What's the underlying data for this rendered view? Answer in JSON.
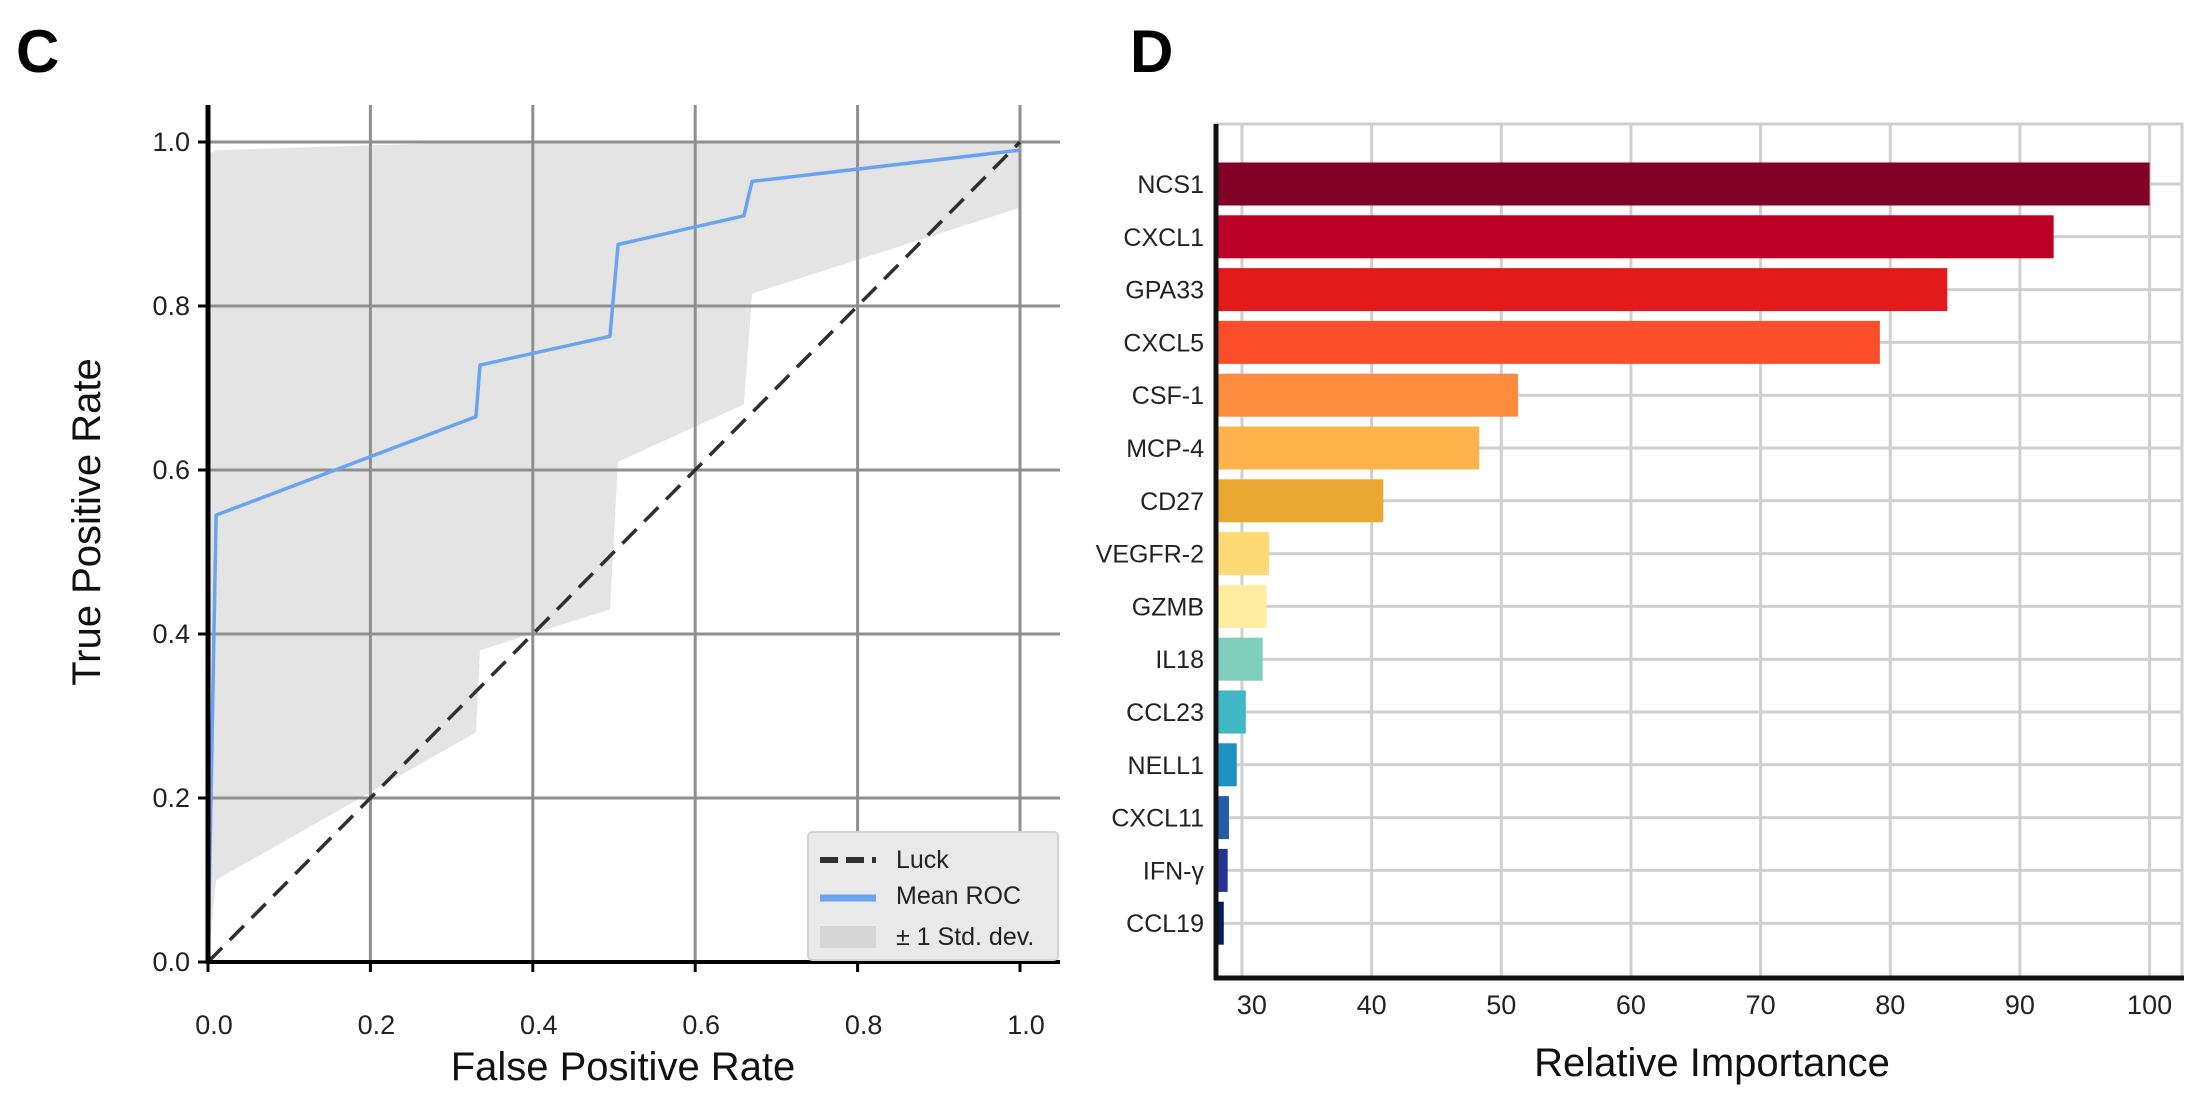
{
  "chart_data": [
    {
      "panel": "C",
      "type": "line",
      "title": "",
      "xlabel": "False Positive Rate",
      "ylabel": "True Positive Rate",
      "xlim": [
        0.0,
        1.0
      ],
      "ylim": [
        0.0,
        1.0
      ],
      "xticks": [
        "0.0",
        "0.2",
        "0.4",
        "0.6",
        "0.8",
        "1.0"
      ],
      "yticks": [
        "0.0",
        "0.2",
        "0.4",
        "0.6",
        "0.8",
        "1.0"
      ],
      "grid": true,
      "legend_position": "bottom-right",
      "series": [
        {
          "name": "Luck",
          "style": "dashed",
          "color": "#2f2f2f",
          "x": [
            0.0,
            1.0
          ],
          "y": [
            0.0,
            1.0
          ]
        },
        {
          "name": "Mean ROC",
          "style": "solid",
          "color": "#6aa4f0",
          "x": [
            0.0,
            0.01,
            0.33,
            0.335,
            0.495,
            0.505,
            0.66,
            0.67,
            1.0
          ],
          "y": [
            0.0,
            0.545,
            0.665,
            0.728,
            0.763,
            0.875,
            0.91,
            0.952,
            0.99
          ]
        }
      ],
      "band": {
        "name": "± 1 Std. dev.",
        "color": "#e4e4e4",
        "x": [
          0.0,
          0.01,
          0.33,
          0.335,
          0.495,
          0.505,
          0.66,
          0.67,
          1.0
        ],
        "upper": [
          0.985,
          0.99,
          1.0,
          1.0,
          1.0,
          1.0,
          1.0,
          1.0,
          1.0
        ],
        "lower": [
          0.0,
          0.1,
          0.28,
          0.38,
          0.43,
          0.61,
          0.68,
          0.815,
          0.92
        ]
      }
    },
    {
      "panel": "D",
      "type": "bar",
      "orientation": "horizontal",
      "title": "",
      "xlabel": "Relative Importance",
      "ylabel": "",
      "xlim": [
        28,
        102.5
      ],
      "xticks": [
        30,
        40,
        50,
        60,
        70,
        80,
        90,
        100
      ],
      "grid": true,
      "categories": [
        "NCS1",
        "CXCL1",
        "GPA33",
        "CXCL5",
        "CSF-1",
        "MCP-4",
        "CD27",
        "VEGFR-2",
        "GZMB",
        "IL18",
        "CCL23",
        "NELL1",
        "CXCL11",
        "IFN-γ",
        "CCL19"
      ],
      "values": [
        100,
        92.6,
        84.4,
        79.2,
        51.3,
        48.3,
        40.9,
        32.1,
        31.9,
        31.6,
        30.3,
        29.6,
        29.0,
        28.9,
        28.6
      ],
      "colors": [
        "#800026",
        "#bd0026",
        "#e31a1c",
        "#fc4e2a",
        "#fd8d3c",
        "#feb24c",
        "#e8a832",
        "#fed976",
        "#ffeda0",
        "#7fcdbb",
        "#41b6c4",
        "#1d91c0",
        "#225ea8",
        "#253494",
        "#081d58"
      ]
    }
  ]
}
